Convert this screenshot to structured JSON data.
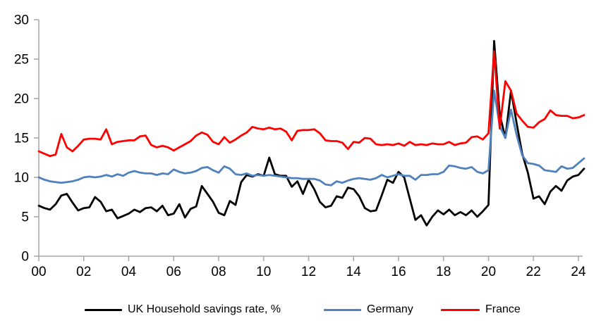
{
  "chart_data": {
    "type": "line",
    "title": "",
    "xlabel": "",
    "ylabel": "",
    "grid": false,
    "legend_position": "bottom",
    "x_axis": {
      "start_year": 2000,
      "step_years": 0.25,
      "tick_years": [
        2000,
        2002,
        2004,
        2006,
        2008,
        2010,
        2012,
        2014,
        2016,
        2018,
        2020,
        2022,
        2024
      ],
      "tick_labels": [
        "00",
        "02",
        "04",
        "06",
        "08",
        "10",
        "12",
        "14",
        "16",
        "18",
        "20",
        "22",
        "24"
      ]
    },
    "y_axis": {
      "min": 0,
      "max": 30,
      "tick_interval": 5,
      "tick_labels": [
        "0",
        "5",
        "10",
        "15",
        "20",
        "25",
        "30"
      ]
    },
    "axis_color": "#A6A6A6",
    "series": [
      {
        "name": "UK Household savings rate, %",
        "color": "#000000",
        "values": [
          6.4,
          6.1,
          5.9,
          6.6,
          7.7,
          7.9,
          6.8,
          5.8,
          6.1,
          6.2,
          7.5,
          6.9,
          5.7,
          5.9,
          4.8,
          5.1,
          5.4,
          5.9,
          5.6,
          6.1,
          6.2,
          5.7,
          6.4,
          5.2,
          5.4,
          6.6,
          4.9,
          6.0,
          6.3,
          8.9,
          7.9,
          6.9,
          5.5,
          5.2,
          7.0,
          6.5,
          9.4,
          10.3,
          10.1,
          10.4,
          10.2,
          12.5,
          10.4,
          10.2,
          10.2,
          8.8,
          9.5,
          7.9,
          9.7,
          8.5,
          6.9,
          6.2,
          6.4,
          7.6,
          7.4,
          8.7,
          8.5,
          7.6,
          6.1,
          5.7,
          5.8,
          7.7,
          9.7,
          9.3,
          10.7,
          10.0,
          7.3,
          4.6,
          5.2,
          3.9,
          5.0,
          5.8,
          5.3,
          5.9,
          5.2,
          5.6,
          5.2,
          5.8,
          5.0,
          5.7,
          6.5,
          27.3,
          18.0,
          15.0,
          21.0,
          16.9,
          13.0,
          10.6,
          7.3,
          7.6,
          6.6,
          8.2,
          8.9,
          8.3,
          9.6,
          10.1,
          10.3,
          11.1
        ]
      },
      {
        "name": "Germany",
        "color": "#4F81BD",
        "values": [
          10.0,
          9.7,
          9.5,
          9.4,
          9.3,
          9.4,
          9.5,
          9.7,
          10.0,
          10.1,
          10.0,
          10.1,
          10.3,
          10.1,
          10.4,
          10.2,
          10.6,
          10.8,
          10.6,
          10.5,
          10.5,
          10.3,
          10.5,
          10.4,
          11.0,
          10.7,
          10.5,
          10.6,
          10.8,
          11.2,
          11.3,
          10.9,
          10.6,
          11.4,
          11.1,
          10.4,
          10.3,
          10.5,
          10.2,
          10.3,
          10.2,
          10.3,
          10.2,
          10.1,
          10.0,
          9.9,
          9.9,
          9.8,
          9.8,
          9.8,
          9.6,
          9.1,
          9.0,
          9.5,
          9.3,
          9.6,
          9.8,
          9.9,
          9.8,
          9.7,
          9.9,
          10.3,
          10.0,
          10.2,
          10.4,
          10.2,
          10.2,
          9.7,
          10.3,
          10.3,
          10.4,
          10.4,
          10.7,
          11.5,
          11.4,
          11.2,
          11.1,
          11.3,
          10.7,
          10.5,
          10.9,
          21.0,
          16.5,
          15.0,
          18.6,
          15.4,
          12.8,
          11.8,
          11.7,
          11.5,
          10.9,
          10.8,
          10.7,
          11.4,
          11.1,
          11.2,
          11.8,
          12.4
        ]
      },
      {
        "name": "France",
        "color": "#FF0000",
        "values": [
          13.3,
          13.0,
          12.7,
          12.9,
          15.5,
          13.8,
          13.3,
          14.0,
          14.8,
          14.9,
          14.9,
          14.8,
          16.1,
          14.2,
          14.5,
          14.6,
          14.7,
          14.7,
          15.2,
          15.3,
          14.1,
          13.8,
          14.0,
          13.8,
          13.4,
          13.8,
          14.2,
          14.6,
          15.3,
          15.7,
          15.4,
          14.5,
          14.2,
          15.1,
          14.4,
          14.8,
          15.3,
          15.7,
          16.4,
          16.2,
          16.1,
          16.3,
          16.1,
          16.2,
          15.8,
          14.7,
          15.9,
          16.0,
          16.0,
          16.1,
          15.6,
          14.7,
          14.6,
          14.6,
          14.4,
          13.6,
          14.5,
          14.4,
          15.0,
          14.9,
          14.2,
          14.1,
          14.2,
          14.1,
          14.3,
          14.0,
          14.5,
          14.1,
          14.2,
          14.1,
          14.3,
          14.2,
          14.2,
          14.5,
          14.1,
          14.3,
          14.4,
          15.1,
          15.2,
          14.8,
          15.6,
          26.0,
          16.2,
          22.2,
          21.0,
          18.1,
          17.2,
          16.4,
          16.3,
          17.0,
          17.4,
          18.5,
          17.9,
          17.8,
          17.8,
          17.5,
          17.6,
          17.9
        ]
      }
    ]
  }
}
